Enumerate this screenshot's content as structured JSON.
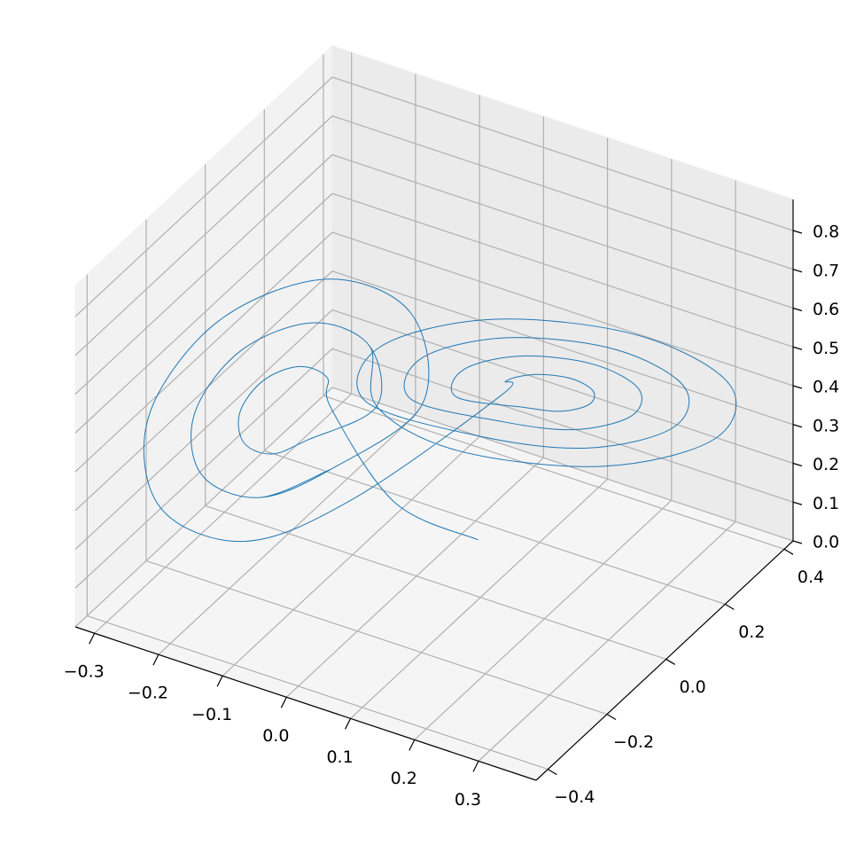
{
  "chart_data": {
    "type": "line3d",
    "xlim": [
      -0.33,
      0.39
    ],
    "ylim": [
      -0.44,
      0.43
    ],
    "zlim": [
      0,
      0.88
    ],
    "xticks": [
      {
        "value": -0.3,
        "label": "−0.3"
      },
      {
        "value": -0.2,
        "label": "−0.2"
      },
      {
        "value": -0.1,
        "label": "−0.1"
      },
      {
        "value": 0,
        "label": "0.0"
      },
      0.1,
      0.2,
      0.3
    ],
    "yticks": [
      {
        "value": -0.4,
        "label": "−0.4"
      },
      {
        "value": -0.2,
        "label": "−0.2"
      },
      {
        "value": 0,
        "label": "0.0"
      },
      0.2,
      0.4
    ],
    "zticks": [
      {
        "value": 0,
        "label": "0.0"
      },
      0.1,
      0.2,
      0.3,
      0.4,
      0.5,
      0.6,
      0.7,
      0.8
    ],
    "grid": true,
    "series": [
      {
        "color": "#1f77b4",
        "x": [
          0.05,
          -0.02,
          -0.09,
          -0.105,
          -0.14,
          -0.175,
          -0.19,
          -0.175,
          -0.14,
          -0.105,
          -0.04,
          -0.069,
          -0.14,
          -0.211,
          -0.24,
          -0.211,
          -0.14,
          -0.069,
          0.01,
          -0.034,
          -0.14,
          -0.246,
          -0.29,
          -0.246,
          -0.14,
          -0.034,
          0.09,
          0.105,
          0.14,
          0.175,
          0.19,
          0.175,
          0.14,
          0.105,
          0.04,
          0.069,
          0.14,
          0.211,
          0.24,
          0.211,
          0.14,
          0.069,
          -0.01,
          0.034,
          0.14,
          0.246,
          0.29,
          0.246,
          0.14,
          0.034,
          -0.06,
          -0.001,
          0.14,
          0.281,
          0.34,
          0.281,
          0.14,
          -0.001,
          -0.04,
          -0.069,
          -0.14,
          -0.211,
          -0.24,
          -0.211,
          -0.14,
          -0.069
        ],
        "y": [
          0.1,
          -0.03,
          -0.094,
          -0.075,
          -0.094,
          -0.14,
          -0.186,
          -0.205,
          -0.186,
          -0.14,
          -0.048,
          -0.01,
          -0.048,
          -0.14,
          -0.232,
          -0.27,
          -0.232,
          -0.14,
          -0.002,
          0.055,
          -0.002,
          -0.14,
          -0.278,
          -0.335,
          -0.278,
          -0.14,
          0.094,
          0.075,
          0.094,
          0.14,
          0.186,
          0.205,
          0.186,
          0.14,
          0.048,
          0.01,
          0.048,
          0.14,
          0.232,
          0.27,
          0.232,
          0.14,
          0.002,
          -0.055,
          0.002,
          0.14,
          0.278,
          0.335,
          0.278,
          0.14,
          -0.044,
          -0.12,
          -0.044,
          0.14,
          0.324,
          0.4,
          0.324,
          0.14,
          -0.048,
          -0.01,
          -0.048,
          -0.14,
          -0.232,
          -0.27,
          -0.232,
          -0.14
        ],
        "z": [
          0.05,
          0.2,
          0.45,
          0.507,
          0.53,
          0.507,
          0.45,
          0.393,
          0.37,
          0.393,
          0.45,
          0.563,
          0.61,
          0.563,
          0.45,
          0.337,
          0.29,
          0.337,
          0.45,
          0.62,
          0.69,
          0.62,
          0.45,
          0.28,
          0.21,
          0.28,
          0.45,
          0.507,
          0.53,
          0.507,
          0.45,
          0.393,
          0.37,
          0.393,
          0.45,
          0.563,
          0.61,
          0.563,
          0.45,
          0.337,
          0.29,
          0.337,
          0.45,
          0.62,
          0.69,
          0.62,
          0.45,
          0.28,
          0.21,
          0.28,
          0.45,
          0.676,
          0.77,
          0.676,
          0.45,
          0.224,
          0.13,
          0.224,
          0.45,
          0.563,
          0.61,
          0.563,
          0.45,
          0.337,
          0.29,
          0.337
        ]
      }
    ]
  }
}
